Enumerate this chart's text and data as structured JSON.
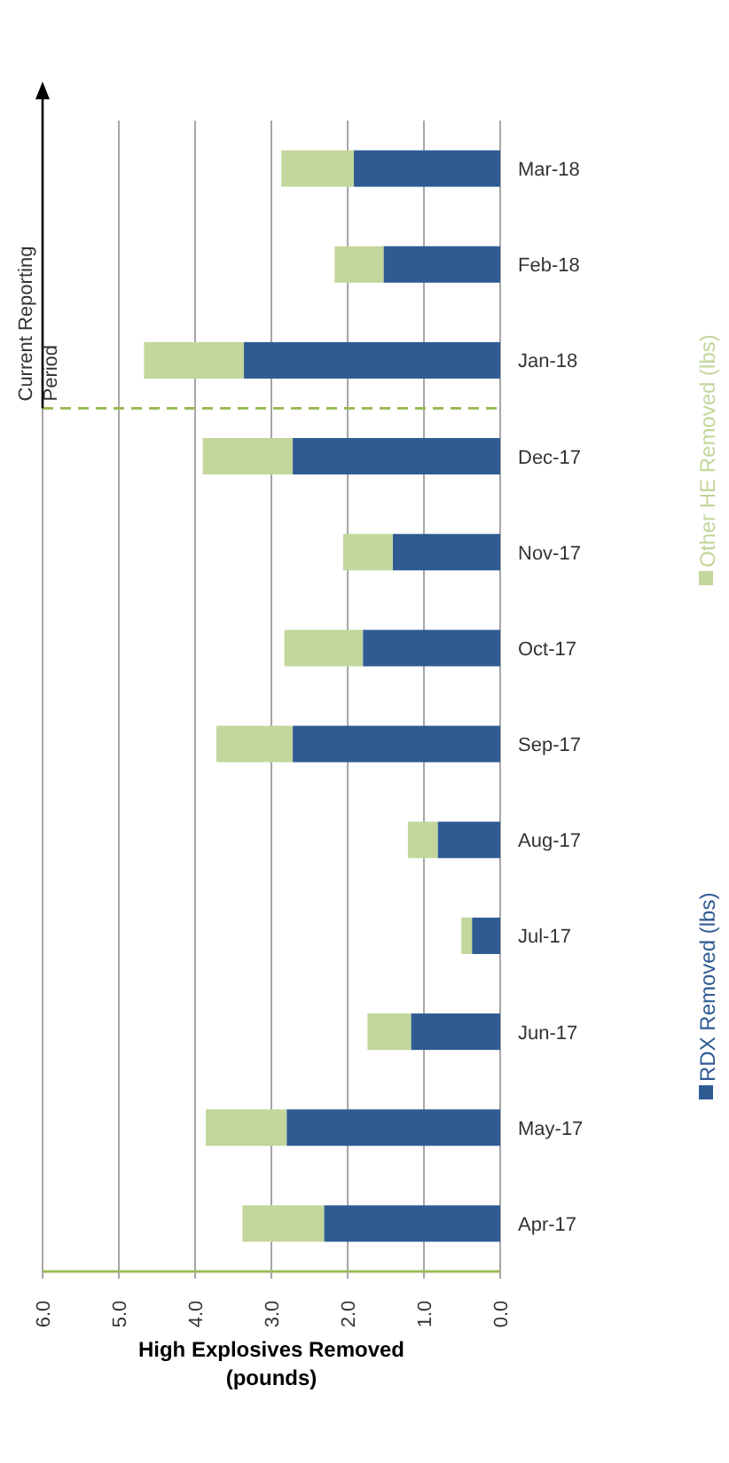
{
  "chart_data": {
    "type": "bar",
    "orientation": "horizontal",
    "stacked": true,
    "categories": [
      "Mar-18",
      "Feb-18",
      "Jan-18",
      "Dec-17",
      "Nov-17",
      "Oct-17",
      "Sep-17",
      "Aug-17",
      "Jul-17",
      "Jun-17",
      "May-17",
      "Apr-17"
    ],
    "series": [
      {
        "name": "RDX Removed (lbs)",
        "color": "#2f5b93",
        "values": [
          1.92,
          1.53,
          3.36,
          2.72,
          1.41,
          1.8,
          2.72,
          0.82,
          0.37,
          1.17,
          2.8,
          2.31
        ]
      },
      {
        "name": "Other HE Removed (lbs)",
        "color": "#c3d69b",
        "values": [
          0.95,
          0.64,
          1.31,
          1.18,
          0.65,
          1.03,
          1.0,
          0.39,
          0.14,
          0.57,
          1.06,
          1.07
        ]
      }
    ],
    "xlim": [
      6,
      0
    ],
    "xticks": [
      {
        "value": 6,
        "label": "6.0"
      },
      {
        "value": 5,
        "label": "5.0"
      },
      {
        "value": 4,
        "label": "4.0"
      },
      {
        "value": 3,
        "label": "3.0"
      },
      {
        "value": 2,
        "label": "2.0"
      },
      {
        "value": 1,
        "label": "1.0"
      },
      {
        "value": 0,
        "label": "0.0"
      }
    ],
    "xlabel": "High Explosives Removed\n(pounds)",
    "grid": "x",
    "legend": "right",
    "ref_lines": [
      {
        "axis": "y",
        "value": "Jan-18",
        "label": "Current Reporting Period",
        "color": "#9bbb59",
        "line_style": "dashed"
      }
    ]
  }
}
